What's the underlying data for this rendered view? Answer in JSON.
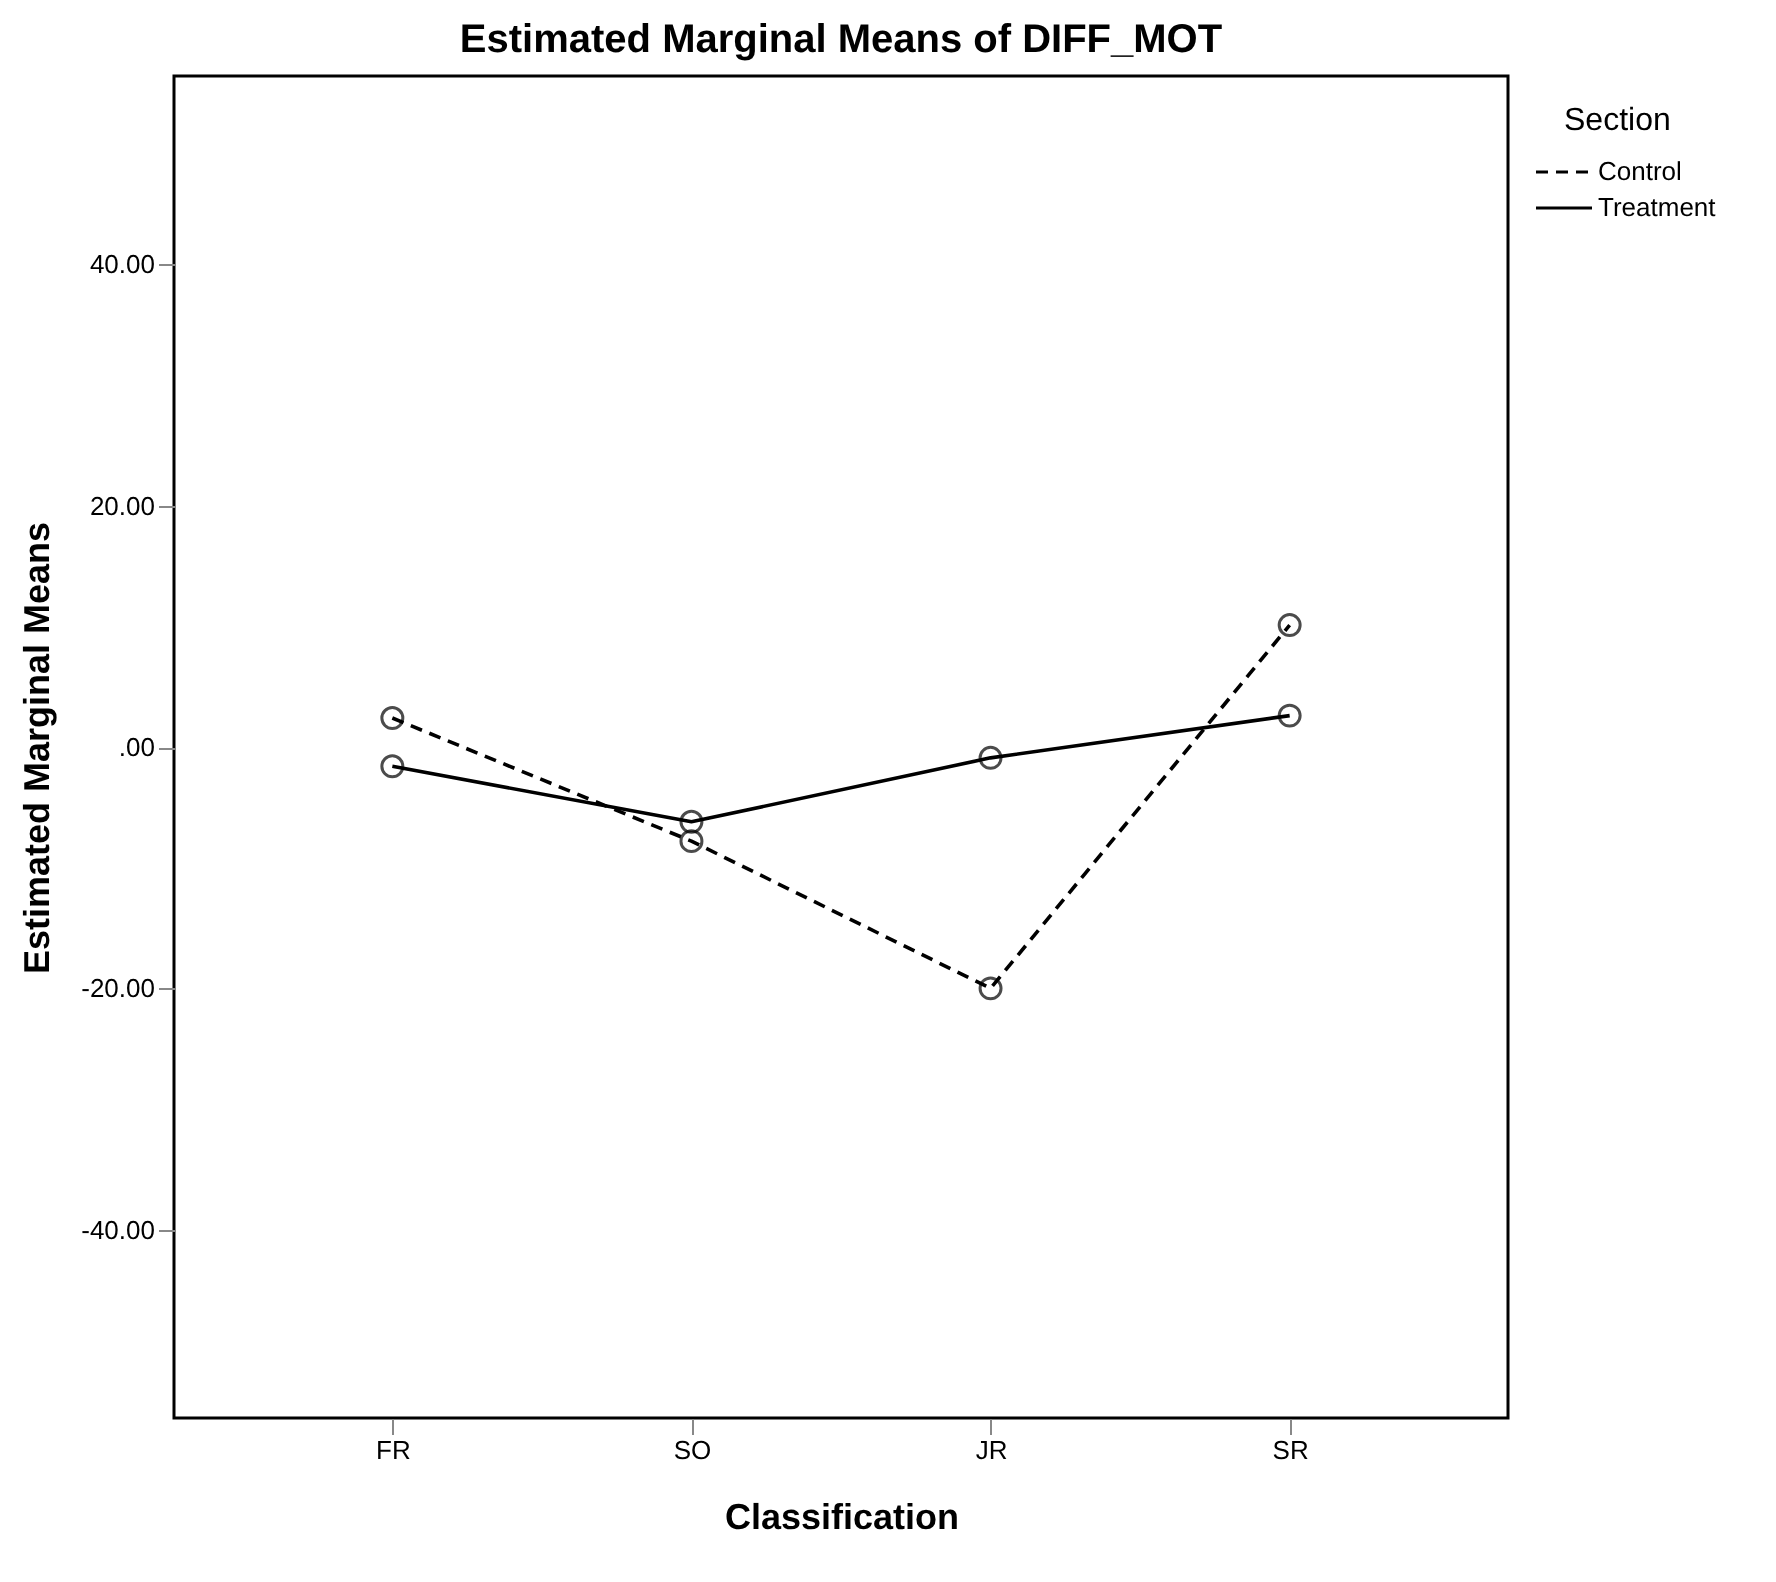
{
  "chart_data": {
    "type": "line",
    "title": "Estimated Marginal Means of DIFF_MOT",
    "xlabel": "Classification",
    "ylabel": "Estimated Marginal Means",
    "legend_title": "Section",
    "categories": [
      "FR",
      "SO",
      "JR",
      "SR"
    ],
    "series": [
      {
        "name": "Control",
        "color": "#000000",
        "line_style": "dashed",
        "values": [
          2.4,
          -7.8,
          -20.0,
          10.1
        ]
      },
      {
        "name": "Treatment",
        "color": "#000000",
        "line_style": "solid",
        "values": [
          -1.6,
          -6.2,
          -0.9,
          2.6
        ]
      }
    ],
    "ylim": [
      -55.6,
      55.6
    ],
    "yticks": [
      {
        "value": 40,
        "label": "40.00"
      },
      {
        "value": 20,
        "label": "20.00"
      },
      {
        "value": 0,
        "label": ".00"
      },
      {
        "value": -20,
        "label": "-20.00"
      },
      {
        "value": -40,
        "label": "-40.00"
      }
    ],
    "marker": "circle",
    "grid": false,
    "legend": "top right"
  }
}
